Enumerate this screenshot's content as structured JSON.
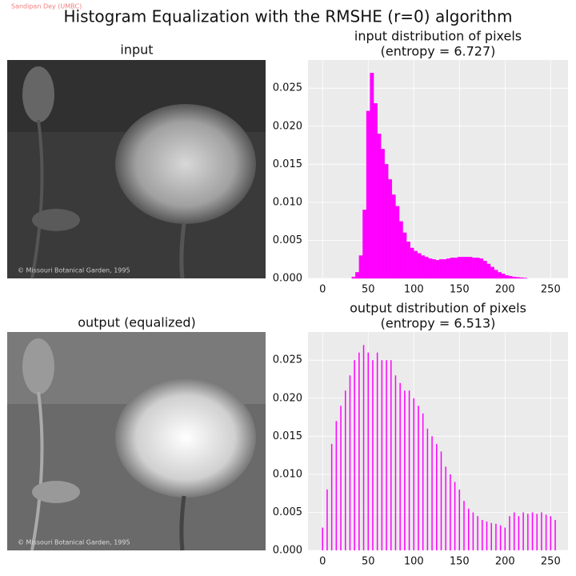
{
  "title": "Histogram Equalization with the RMSHE (r=0) algorithm",
  "watermark": "Sandipan Dey (UMBC)",
  "images": [
    {
      "title": "input",
      "caption": "© Missouri Botanical Garden, 1995"
    },
    {
      "title": "output (equalized)",
      "caption": "© Missouri Botanical Garden, 1995"
    }
  ],
  "chart_data": [
    {
      "type": "histogram",
      "title": "input distribution of pixels",
      "subtitle": "(entropy = 6.727)",
      "color": "#ff00ff",
      "bins": [
        0,
        4,
        8,
        12,
        16,
        20,
        24,
        28,
        32,
        36,
        40,
        44,
        48,
        52,
        56,
        60,
        64,
        68,
        72,
        76,
        80,
        84,
        88,
        92,
        96,
        100,
        104,
        108,
        112,
        116,
        120,
        124,
        128,
        132,
        136,
        140,
        144,
        148,
        152,
        156,
        160,
        164,
        168,
        172,
        176,
        180,
        184,
        188,
        192,
        196,
        200,
        204,
        208,
        212,
        216,
        220,
        224,
        228,
        232,
        236,
        240,
        244,
        248,
        252,
        256
      ],
      "values": [
        0,
        0,
        0,
        0,
        0,
        0,
        0,
        0,
        0.0002,
        0.0008,
        0.003,
        0.009,
        0.022,
        0.027,
        0.023,
        0.019,
        0.017,
        0.015,
        0.013,
        0.011,
        0.0095,
        0.0075,
        0.006,
        0.0048,
        0.004,
        0.0036,
        0.0033,
        0.003,
        0.0028,
        0.0026,
        0.0025,
        0.0024,
        0.0025,
        0.0025,
        0.0026,
        0.0027,
        0.0027,
        0.0028,
        0.0028,
        0.0028,
        0.0028,
        0.0027,
        0.0027,
        0.0026,
        0.0023,
        0.0019,
        0.0015,
        0.0011,
        0.0008,
        0.0006,
        0.0004,
        0.0003,
        0.0002,
        0.00015,
        0.0001,
        5e-05,
        0,
        0,
        0,
        0,
        0,
        0,
        0,
        0
      ],
      "xlim": [
        -16,
        269
      ],
      "xticks": [
        0,
        50,
        100,
        150,
        200,
        250
      ],
      "ylim": [
        0,
        0.0287
      ],
      "yticks": [
        {
          "value": 0,
          "label": "0.000"
        },
        0.005,
        {
          "value": 0.01,
          "label": "0.010"
        },
        0.015,
        {
          "value": 0.02,
          "label": "0.020"
        },
        0.025
      ],
      "grid": true
    },
    {
      "type": "bar",
      "title": "output distribution of pixels",
      "subtitle": "(entropy = 6.513)",
      "color": "#ff00ff",
      "x": [
        0,
        5,
        10,
        15,
        20,
        25,
        30,
        35,
        40,
        45,
        50,
        55,
        60,
        65,
        70,
        75,
        80,
        85,
        90,
        95,
        100,
        105,
        110,
        115,
        120,
        125,
        130,
        135,
        140,
        145,
        150,
        155,
        160,
        165,
        170,
        175,
        180,
        185,
        190,
        195,
        200,
        205,
        210,
        215,
        220,
        225,
        230,
        235,
        240,
        245,
        250,
        255
      ],
      "values": [
        0.003,
        0.008,
        0.014,
        0.017,
        0.019,
        0.021,
        0.023,
        0.025,
        0.026,
        0.027,
        0.026,
        0.025,
        0.026,
        0.025,
        0.025,
        0.025,
        0.023,
        0.022,
        0.021,
        0.021,
        0.02,
        0.019,
        0.018,
        0.016,
        0.015,
        0.014,
        0.013,
        0.011,
        0.01,
        0.009,
        0.008,
        0.0065,
        0.0055,
        0.005,
        0.0045,
        0.004,
        0.0038,
        0.0036,
        0.0035,
        0.0033,
        0.003,
        0.0045,
        0.005,
        0.0045,
        0.005,
        0.0048,
        0.005,
        0.0048,
        0.005,
        0.0047,
        0.0045,
        0.004
      ],
      "xlim": [
        -16,
        269
      ],
      "xticks": [
        0,
        50,
        100,
        150,
        200,
        250
      ],
      "ylim": [
        0,
        0.0287
      ],
      "yticks": [
        {
          "value": 0,
          "label": "0.000"
        },
        0.005,
        {
          "value": 0.01,
          "label": "0.010"
        },
        0.015,
        {
          "value": 0.02,
          "label": "0.020"
        },
        0.025
      ],
      "grid": true
    }
  ]
}
